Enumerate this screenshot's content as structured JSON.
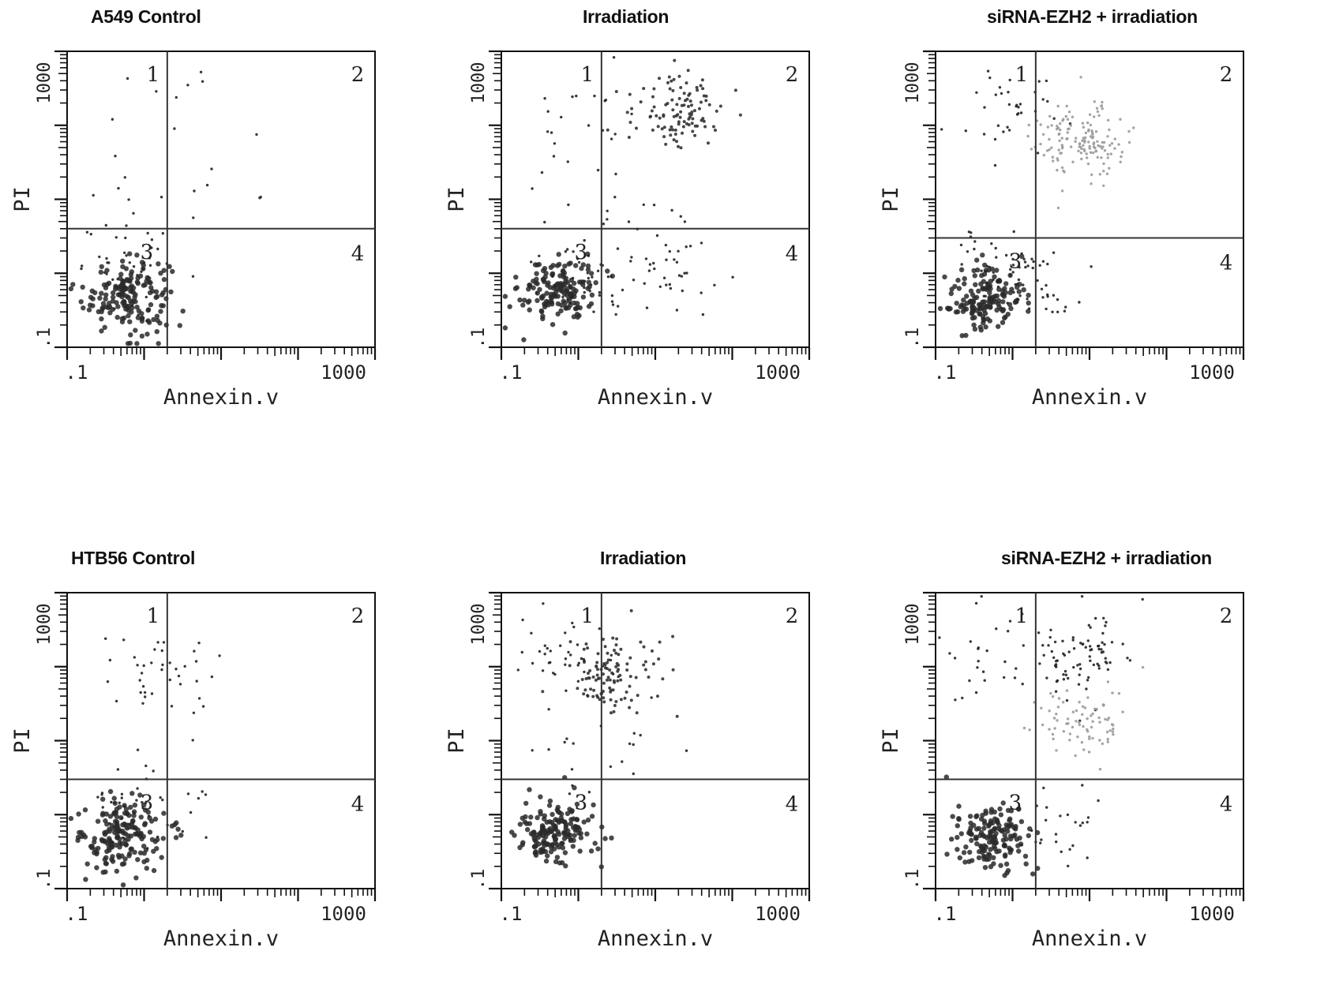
{
  "figure": {
    "panels": [
      {
        "id": "a549-control",
        "title": "A549  Control"
      },
      {
        "id": "a549-irradiation",
        "title": "Irradiation"
      },
      {
        "id": "a549-sirna",
        "title": "siRNA-EZH2 + irradiation"
      },
      {
        "id": "htb56-control",
        "title": "HTB56  Control"
      },
      {
        "id": "htb56-irradiation",
        "title": "Irradiation"
      },
      {
        "id": "htb56-sirna",
        "title": "siRNA-EZH2 + irradiation"
      }
    ]
  },
  "chart_data": [
    {
      "type": "scatter",
      "title": "A549  Control",
      "xlabel": "Annexin.v",
      "ylabel": "PI",
      "x_scale": "log",
      "y_scale": "log",
      "xlim": [
        0.1,
        1000
      ],
      "ylim": [
        0.1,
        1000
      ],
      "x_ticks": [
        ".1",
        "1000"
      ],
      "y_ticks": [
        ".1",
        "1000"
      ],
      "quadrant_labels": [
        "1",
        "2",
        "3",
        "4"
      ],
      "quadrant_gate": {
        "x": 2,
        "y": 4
      },
      "clusters": [
        {
          "x": 0.6,
          "y": 0.5,
          "count": 170,
          "spread": 0.28,
          "density": "dense"
        },
        {
          "x": 0.8,
          "y": 1.2,
          "count": 40,
          "spread": 0.35,
          "density": "sparse"
        },
        {
          "x": 1.0,
          "y": 60,
          "count": 14,
          "spread": 0.6,
          "density": "sparse"
        },
        {
          "x": 8,
          "y": 30,
          "count": 8,
          "spread": 0.5,
          "density": "sparse"
        }
      ]
    },
    {
      "type": "scatter",
      "title": "Irradiation",
      "xlabel": "Annexin.v",
      "ylabel": "PI",
      "x_scale": "log",
      "y_scale": "log",
      "xlim": [
        0.1,
        1000
      ],
      "ylim": [
        0.1,
        1000
      ],
      "x_ticks": [
        ".1",
        "1000"
      ],
      "y_ticks": [
        ".1",
        "1000"
      ],
      "quadrant_labels": [
        "1",
        "2",
        "3",
        "4"
      ],
      "quadrant_gate": {
        "x": 2,
        "y": 4
      },
      "clusters": [
        {
          "x": 0.55,
          "y": 0.6,
          "count": 160,
          "spread": 0.25,
          "density": "dense"
        },
        {
          "x": 1.0,
          "y": 1.0,
          "count": 40,
          "spread": 0.3,
          "density": "sparse"
        },
        {
          "x": 12,
          "y": 1.2,
          "count": 45,
          "spread": 0.45,
          "density": "sparse"
        },
        {
          "x": 20,
          "y": 160,
          "count": 110,
          "spread": 0.3,
          "density": "medium"
        },
        {
          "x": 1.0,
          "y": 60,
          "count": 28,
          "spread": 0.5,
          "density": "sparse"
        }
      ]
    },
    {
      "type": "scatter",
      "title": "siRNA-EZH2 + irradiation",
      "xlabel": "Annexin.v",
      "ylabel": "PI",
      "x_scale": "log",
      "y_scale": "log",
      "xlim": [
        0.1,
        1000
      ],
      "ylim": [
        0.1,
        1000
      ],
      "x_ticks": [
        ".1",
        "1000"
      ],
      "y_ticks": [
        ".1",
        "1000"
      ],
      "quadrant_labels": [
        "1",
        "2",
        "3",
        "4"
      ],
      "quadrant_gate": {
        "x": 2,
        "y": 3
      },
      "clusters": [
        {
          "x": 0.45,
          "y": 0.45,
          "count": 160,
          "spread": 0.25,
          "density": "dense"
        },
        {
          "x": 0.8,
          "y": 1.0,
          "count": 50,
          "spread": 0.32,
          "density": "sparse"
        },
        {
          "x": 1.0,
          "y": 150,
          "count": 35,
          "spread": 0.35,
          "density": "sparse"
        },
        {
          "x": 8,
          "y": 60,
          "count": 150,
          "spread": 0.3,
          "density": "light"
        },
        {
          "x": 3,
          "y": 0.6,
          "count": 18,
          "spread": 0.25,
          "density": "sparse"
        }
      ]
    },
    {
      "type": "scatter",
      "title": "HTB56  Control",
      "xlabel": "Annexin.v",
      "ylabel": "PI",
      "x_scale": "log",
      "y_scale": "log",
      "xlim": [
        0.1,
        1000
      ],
      "ylim": [
        0.1,
        1000
      ],
      "x_ticks": [
        ".1",
        "1000"
      ],
      "y_ticks": [
        ".1",
        "1000"
      ],
      "quadrant_labels": [
        "1",
        "2",
        "3",
        "4"
      ],
      "quadrant_gate": {
        "x": 2,
        "y": 3
      },
      "clusters": [
        {
          "x": 0.5,
          "y": 0.5,
          "count": 180,
          "spread": 0.28,
          "density": "dense"
        },
        {
          "x": 0.9,
          "y": 1.2,
          "count": 40,
          "spread": 0.35,
          "density": "sparse"
        },
        {
          "x": 2.5,
          "y": 70,
          "count": 30,
          "spread": 0.4,
          "density": "sparse"
        },
        {
          "x": 0.8,
          "y": 150,
          "count": 10,
          "spread": 0.3,
          "density": "sparse"
        }
      ]
    },
    {
      "type": "scatter",
      "title": "Irradiation",
      "xlabel": "Annexin.v",
      "ylabel": "PI",
      "x_scale": "log",
      "y_scale": "log",
      "xlim": [
        0.1,
        1000
      ],
      "ylim": [
        0.1,
        1000
      ],
      "x_ticks": [
        ".1",
        "1000"
      ],
      "y_ticks": [
        ".1",
        "1000"
      ],
      "quadrant_labels": [
        "1",
        "2",
        "3",
        "4"
      ],
      "quadrant_gate": {
        "x": 2,
        "y": 3
      },
      "clusters": [
        {
          "x": 0.5,
          "y": 0.6,
          "count": 170,
          "spread": 0.25,
          "density": "dense"
        },
        {
          "x": 2.5,
          "y": 80,
          "count": 110,
          "spread": 0.3,
          "density": "medium"
        },
        {
          "x": 0.7,
          "y": 120,
          "count": 40,
          "spread": 0.35,
          "density": "sparse"
        },
        {
          "x": 2.0,
          "y": 8,
          "count": 20,
          "spread": 0.4,
          "density": "sparse"
        }
      ]
    },
    {
      "type": "scatter",
      "title": "siRNA-EZH2 + irradiation",
      "xlabel": "Annexin.v",
      "ylabel": "PI",
      "x_scale": "log",
      "y_scale": "log",
      "xlim": [
        0.1,
        1000
      ],
      "ylim": [
        0.1,
        1000
      ],
      "x_ticks": [
        ".1",
        "1000"
      ],
      "y_ticks": [
        ".1",
        "1000"
      ],
      "quadrant_labels": [
        "1",
        "2",
        "3",
        "4"
      ],
      "quadrant_gate": {
        "x": 2,
        "y": 3
      },
      "clusters": [
        {
          "x": 0.5,
          "y": 0.5,
          "count": 160,
          "spread": 0.25,
          "density": "dense"
        },
        {
          "x": 0.5,
          "y": 150,
          "count": 30,
          "spread": 0.35,
          "density": "sparse"
        },
        {
          "x": 8,
          "y": 170,
          "count": 80,
          "spread": 0.3,
          "density": "sparse"
        },
        {
          "x": 8,
          "y": 20,
          "count": 80,
          "spread": 0.28,
          "density": "light"
        },
        {
          "x": 4,
          "y": 0.8,
          "count": 25,
          "spread": 0.3,
          "density": "sparse"
        }
      ]
    }
  ]
}
